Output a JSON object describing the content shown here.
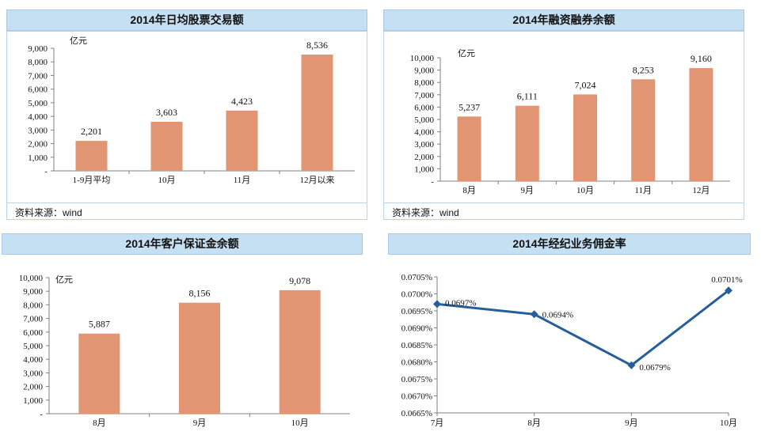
{
  "colors": {
    "bar": "#e29573",
    "line": "#255e9b",
    "title_bg": "#c5dff3"
  },
  "source_note": "资料来源：wind",
  "chart_data": [
    {
      "type": "bar",
      "title": "2014年日均股票交易额",
      "unit_label": "亿元",
      "categories": [
        "1-9月平均",
        "10月",
        "11月",
        "12月以来"
      ],
      "values": [
        2201,
        3603,
        4423,
        8536
      ],
      "value_labels": [
        "2,201",
        "3,603",
        "4,423",
        "8,536"
      ],
      "ylim": [
        0,
        9000
      ],
      "yticks": [
        "-",
        "1,000",
        "2,000",
        "3,000",
        "4,000",
        "5,000",
        "6,000",
        "7,000",
        "8,000",
        "9,000"
      ]
    },
    {
      "type": "bar",
      "title": "2014年融资融券余额",
      "unit_label": "亿元",
      "categories": [
        "8月",
        "9月",
        "10月",
        "11月",
        "12月"
      ],
      "values": [
        5237,
        6111,
        7024,
        8253,
        9160
      ],
      "value_labels": [
        "5,237",
        "6,111",
        "7,024",
        "8,253",
        "9,160"
      ],
      "ylim": [
        0,
        10000
      ],
      "yticks": [
        "-",
        "1,000",
        "2,000",
        "3,000",
        "4,000",
        "5,000",
        "6,000",
        "7,000",
        "8,000",
        "9,000",
        "10,000"
      ]
    },
    {
      "type": "bar",
      "title": "2014年客户保证金余额",
      "unit_label": "亿元",
      "categories": [
        "8月",
        "9月",
        "10月"
      ],
      "values": [
        5887,
        8156,
        9078
      ],
      "value_labels": [
        "5,887",
        "8,156",
        "9,078"
      ],
      "ylim": [
        0,
        10000
      ],
      "yticks": [
        "-",
        "1,000",
        "2,000",
        "3,000",
        "4,000",
        "5,000",
        "6,000",
        "7,000",
        "8,000",
        "9,000",
        "10,000"
      ]
    },
    {
      "type": "line",
      "title": "2014年经纪业务佣金率",
      "categories": [
        "7月",
        "8月",
        "9月",
        "10月"
      ],
      "values": [
        0.0697,
        0.0694,
        0.0679,
        0.0701
      ],
      "value_labels": [
        "0.0697%",
        "0.0694%",
        "0.0679%",
        "0.0701%"
      ],
      "ylim": [
        0.0665,
        0.0705
      ],
      "yticks": [
        "0.0665%",
        "0.0670%",
        "0.0675%",
        "0.0680%",
        "0.0685%",
        "0.0690%",
        "0.0695%",
        "0.0700%",
        "0.0705%"
      ]
    }
  ]
}
